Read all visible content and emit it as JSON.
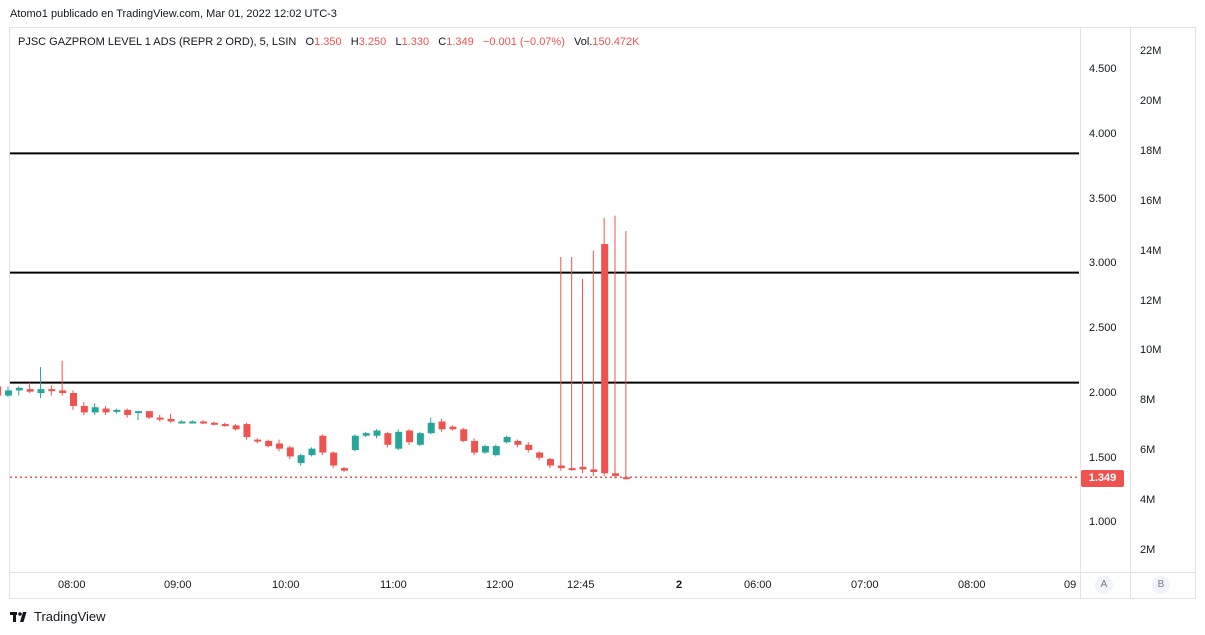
{
  "header": {
    "published": "Atomo1 publicado en TradingView.com, Mar 01, 2022 12:02 UTC-3"
  },
  "legend": {
    "symbol": "PJSC GAZPROM LEVEL 1 ADS (REPR 2 ORD), 5, LSIN",
    "open_label": "O",
    "open": "1.350",
    "high_label": "H",
    "high": "3.250",
    "low_label": "L",
    "low": "1.330",
    "close_label": "C",
    "close": "1.349",
    "change": "−0.001 (−0.07%)",
    "vol_label": "Vol.",
    "vol": "150.472K"
  },
  "price_axis": [
    "4.500",
    "4.000",
    "3.500",
    "3.000",
    "2.500",
    "2.000",
    "1.500",
    "1.000"
  ],
  "volume_axis": [
    "22M",
    "20M",
    "18M",
    "16M",
    "14M",
    "12M",
    "10M",
    "8M",
    "6M",
    "4M",
    "2M"
  ],
  "time_axis": [
    "08:00",
    "09:00",
    "10:00",
    "11:00",
    "12:00",
    "12:45",
    "2",
    "06:00",
    "07:00",
    "08:00",
    "09"
  ],
  "last_price": "1.349",
  "buttons": {
    "a": "A",
    "b": "B"
  },
  "footer": {
    "brand": "TradingView"
  },
  "colors": {
    "up": "#26a69a",
    "down": "#ef5350",
    "hline": "#000000",
    "last_line": "#ef5350"
  },
  "chart_data": {
    "type": "candlestick",
    "horizontal_lines": [
      3.85,
      2.93,
      2.08
    ],
    "last_price_value": 1.349,
    "candles": [
      [
        1.4,
        2.03,
        2.09,
        2.0,
        2.05
      ],
      [
        1.6,
        2.05,
        2.07,
        1.96,
        1.98
      ],
      [
        1.8,
        1.98,
        2.05,
        1.97,
        2.02
      ],
      [
        2.0,
        2.02,
        2.05,
        1.98,
        2.04
      ],
      [
        2.2,
        2.03,
        2.08,
        2.0,
        2.01
      ],
      [
        2.4,
        2.0,
        2.2,
        1.96,
        2.03
      ],
      [
        2.6,
        2.03,
        2.06,
        1.98,
        2.02
      ],
      [
        2.8,
        2.02,
        2.25,
        1.98,
        2.0
      ],
      [
        3.0,
        2.0,
        2.02,
        1.87,
        1.9
      ],
      [
        3.2,
        1.9,
        1.93,
        1.83,
        1.85
      ],
      [
        3.4,
        1.85,
        1.92,
        1.83,
        1.89
      ],
      [
        3.6,
        1.88,
        1.9,
        1.83,
        1.85
      ],
      [
        3.8,
        1.86,
        1.88,
        1.84,
        1.87
      ],
      [
        4.0,
        1.87,
        1.88,
        1.81,
        1.83
      ],
      [
        4.2,
        1.85,
        1.86,
        1.79,
        1.86
      ],
      [
        4.4,
        1.86,
        1.86,
        1.8,
        1.81
      ],
      [
        4.6,
        1.81,
        1.83,
        1.78,
        1.8
      ],
      [
        4.8,
        1.8,
        1.84,
        1.77,
        1.78
      ],
      [
        5.0,
        1.78,
        1.79,
        1.77,
        1.78
      ],
      [
        5.2,
        1.78,
        1.79,
        1.77,
        1.78
      ],
      [
        5.4,
        1.78,
        1.79,
        1.76,
        1.77
      ],
      [
        5.6,
        1.77,
        1.78,
        1.75,
        1.76
      ],
      [
        5.8,
        1.76,
        1.77,
        1.74,
        1.75
      ],
      [
        6.0,
        1.75,
        1.76,
        1.71,
        1.72
      ],
      [
        6.2,
        1.76,
        1.77,
        1.64,
        1.66
      ],
      [
        6.4,
        1.64,
        1.65,
        1.61,
        1.63
      ],
      [
        6.6,
        1.63,
        1.64,
        1.58,
        1.59
      ],
      [
        6.8,
        1.61,
        1.64,
        1.55,
        1.57
      ],
      [
        7.0,
        1.58,
        1.59,
        1.49,
        1.51
      ],
      [
        7.2,
        1.46,
        1.53,
        1.44,
        1.52
      ],
      [
        7.4,
        1.52,
        1.58,
        1.51,
        1.57
      ],
      [
        7.6,
        1.67,
        1.68,
        1.52,
        1.54
      ],
      [
        7.8,
        1.54,
        1.55,
        1.42,
        1.44
      ],
      [
        8.0,
        1.42,
        1.43,
        1.39,
        1.4
      ],
      [
        8.2,
        1.56,
        1.68,
        1.55,
        1.67
      ],
      [
        8.4,
        1.67,
        1.7,
        1.66,
        1.69
      ],
      [
        8.6,
        1.67,
        1.72,
        1.65,
        1.71
      ],
      [
        8.8,
        1.69,
        1.7,
        1.58,
        1.6
      ],
      [
        9.0,
        1.57,
        1.72,
        1.56,
        1.7
      ],
      [
        9.2,
        1.71,
        1.72,
        1.6,
        1.62
      ],
      [
        9.4,
        1.6,
        1.7,
        1.59,
        1.69
      ],
      [
        9.6,
        1.69,
        1.81,
        1.68,
        1.77
      ],
      [
        9.8,
        1.78,
        1.8,
        1.7,
        1.72
      ],
      [
        10.0,
        1.74,
        1.75,
        1.71,
        1.72
      ],
      [
        10.2,
        1.72,
        1.73,
        1.62,
        1.63
      ],
      [
        10.4,
        1.63,
        1.65,
        1.52,
        1.54
      ],
      [
        10.6,
        1.54,
        1.6,
        1.53,
        1.59
      ],
      [
        10.8,
        1.52,
        1.6,
        1.51,
        1.59
      ],
      [
        11.0,
        1.62,
        1.67,
        1.61,
        1.66
      ],
      [
        11.2,
        1.63,
        1.64,
        1.58,
        1.6
      ],
      [
        11.4,
        1.6,
        1.62,
        1.54,
        1.56
      ],
      [
        11.6,
        1.54,
        1.55,
        1.48,
        1.5
      ],
      [
        11.8,
        1.49,
        1.5,
        1.42,
        1.44
      ],
      [
        12.0,
        1.44,
        3.05,
        1.4,
        1.42
      ],
      [
        12.2,
        1.42,
        3.05,
        1.4,
        1.41
      ],
      [
        12.4,
        1.43,
        2.88,
        1.38,
        1.41
      ],
      [
        12.6,
        1.41,
        3.1,
        1.36,
        1.39
      ],
      [
        12.8,
        3.15,
        3.35,
        1.36,
        1.38
      ],
      [
        13.0,
        1.38,
        3.37,
        1.34,
        1.36
      ],
      [
        13.2,
        1.35,
        3.25,
        1.33,
        1.349
      ]
    ]
  }
}
